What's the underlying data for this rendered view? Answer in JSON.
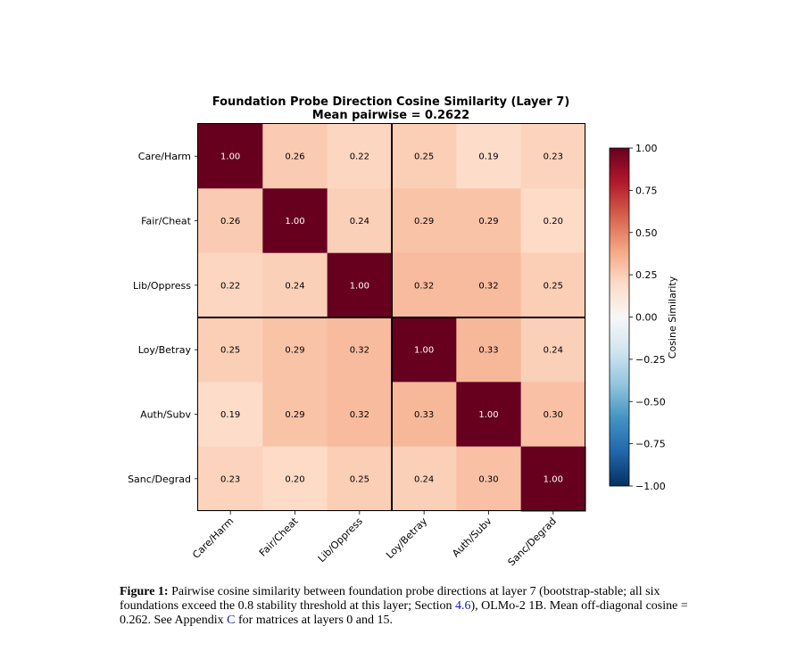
{
  "chart_data": {
    "type": "heatmap",
    "title_line1": "Foundation Probe Direction Cosine Similarity (Layer 7)",
    "title_line2": "Mean pairwise = 0.2622",
    "row_labels": [
      "Care/Harm",
      "Fair/Cheat",
      "Lib/Oppress",
      "Loy/Betray",
      "Auth/Subv",
      "Sanc/Degrad"
    ],
    "col_labels": [
      "Care/Harm",
      "Fair/Cheat",
      "Lib/Oppress",
      "Loy/Betray",
      "Auth/Subv",
      "Sanc/Degrad"
    ],
    "values": [
      [
        1.0,
        0.26,
        0.22,
        0.25,
        0.19,
        0.23
      ],
      [
        0.26,
        1.0,
        0.24,
        0.29,
        0.29,
        0.2
      ],
      [
        0.22,
        0.24,
        1.0,
        0.32,
        0.32,
        0.25
      ],
      [
        0.25,
        0.29,
        0.32,
        1.0,
        0.33,
        0.24
      ],
      [
        0.19,
        0.29,
        0.32,
        0.33,
        1.0,
        0.3
      ],
      [
        0.23,
        0.2,
        0.25,
        0.24,
        0.3,
        1.0
      ]
    ],
    "colormap": "RdBu_r",
    "vmin": -1.0,
    "vmax": 1.0,
    "group_divider_after_index": 3,
    "colorbar": {
      "label": "Cosine Similarity",
      "ticks": [
        "1.00",
        "0.75",
        "0.50",
        "0.25",
        "0.00",
        "−0.25",
        "−0.50",
        "−0.75",
        "−1.00"
      ]
    }
  },
  "caption": {
    "label": "Figure 1:",
    "text_1": " Pairwise cosine similarity between foundation probe directions at layer 7 (bootstrap-stable; all six foundations exceed the 0.8 stability threshold at this layer; Section ",
    "ref_section": "4.6",
    "text_2": "), OLMo-2 1B. Mean off-diagonal cosine = 0.262. See Appendix ",
    "ref_appendix": "C",
    "text_3": " for matrices at layers 0 and 15."
  }
}
